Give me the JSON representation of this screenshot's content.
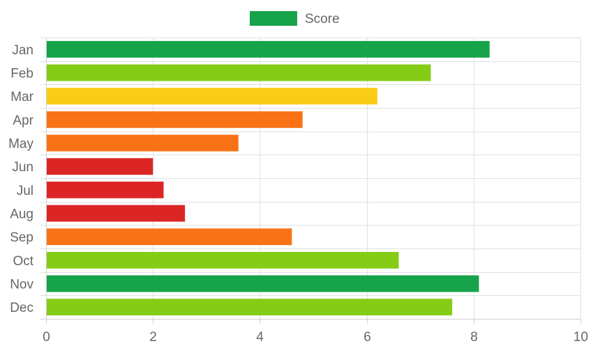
{
  "chart_data": {
    "type": "bar",
    "orientation": "horizontal",
    "categories": [
      "Jan",
      "Feb",
      "Mar",
      "Apr",
      "May",
      "Jun",
      "Jul",
      "Aug",
      "Sep",
      "Oct",
      "Nov",
      "Dec"
    ],
    "series": [
      {
        "name": "Score",
        "values": [
          8.3,
          7.2,
          6.2,
          4.8,
          3.6,
          2.0,
          2.2,
          2.6,
          4.6,
          6.6,
          8.1,
          7.6
        ],
        "colors": [
          "#16a34a",
          "#84cc16",
          "#facc15",
          "#f97316",
          "#f97316",
          "#dc2626",
          "#dc2626",
          "#dc2626",
          "#f97316",
          "#84cc16",
          "#16a34a",
          "#84cc16"
        ]
      }
    ],
    "xlim": [
      0,
      10
    ],
    "x_ticks": [
      0,
      2,
      4,
      6,
      8,
      10
    ],
    "grid": true,
    "legend": {
      "placement": "top-center",
      "color": "#16a34a"
    }
  }
}
